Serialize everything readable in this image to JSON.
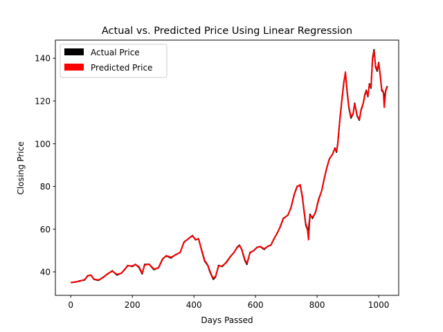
{
  "chart_data": {
    "type": "line",
    "title": "Actual vs. Predicted Price Using Linear Regression",
    "xlabel": "Days Passed",
    "ylabel": "Closing Price",
    "xlim": [
      -50,
      1065
    ],
    "ylim": [
      29,
      148.5
    ],
    "xticks": [
      0,
      200,
      400,
      600,
      800,
      1000
    ],
    "yticks": [
      40,
      60,
      80,
      100,
      120,
      140
    ],
    "grid": false,
    "legend_position": "top-left",
    "series": [
      {
        "name": "Actual Price",
        "color": "#000000",
        "points": [
          [
            0,
            35
          ],
          [
            15,
            35.2
          ],
          [
            30,
            35.8
          ],
          [
            45,
            36.2
          ],
          [
            55,
            38.2
          ],
          [
            65,
            38.5
          ],
          [
            75,
            36.5
          ],
          [
            90,
            36
          ],
          [
            105,
            37.5
          ],
          [
            120,
            39
          ],
          [
            135,
            40.5
          ],
          [
            150,
            38.5
          ],
          [
            165,
            39.5
          ],
          [
            175,
            41
          ],
          [
            185,
            43
          ],
          [
            200,
            42.5
          ],
          [
            210,
            43.5
          ],
          [
            222,
            42
          ],
          [
            232,
            39
          ],
          [
            240,
            43.5
          ],
          [
            255,
            43.5
          ],
          [
            270,
            41
          ],
          [
            285,
            42
          ],
          [
            298,
            46
          ],
          [
            310,
            47.5
          ],
          [
            325,
            46.5
          ],
          [
            340,
            48
          ],
          [
            355,
            49
          ],
          [
            368,
            54
          ],
          [
            382,
            55.5
          ],
          [
            395,
            57
          ],
          [
            405,
            55
          ],
          [
            415,
            55.5
          ],
          [
            425,
            50
          ],
          [
            435,
            45
          ],
          [
            445,
            43
          ],
          [
            452,
            40
          ],
          [
            458,
            38
          ],
          [
            463,
            36.5
          ],
          [
            470,
            37.5
          ],
          [
            480,
            43
          ],
          [
            492,
            42.5
          ],
          [
            505,
            44.5
          ],
          [
            520,
            47.5
          ],
          [
            530,
            49
          ],
          [
            540,
            51.5
          ],
          [
            548,
            52.5
          ],
          [
            555,
            50.5
          ],
          [
            565,
            45.5
          ],
          [
            572,
            43.5
          ],
          [
            582,
            49
          ],
          [
            595,
            50
          ],
          [
            605,
            51.5
          ],
          [
            615,
            51.8
          ],
          [
            628,
            50.5
          ],
          [
            640,
            52
          ],
          [
            650,
            52.5
          ],
          [
            660,
            55.5
          ],
          [
            670,
            58
          ],
          [
            680,
            61
          ],
          [
            690,
            65
          ],
          [
            705,
            66.5
          ],
          [
            715,
            70
          ],
          [
            725,
            76
          ],
          [
            735,
            80
          ],
          [
            745,
            80.5
          ],
          [
            752,
            75
          ],
          [
            758,
            68
          ],
          [
            763,
            62
          ],
          [
            768,
            60
          ],
          [
            772,
            59.5
          ],
          [
            777,
            67
          ],
          [
            785,
            65
          ],
          [
            795,
            68
          ],
          [
            805,
            74
          ],
          [
            815,
            78
          ],
          [
            822,
            83
          ],
          [
            830,
            88
          ],
          [
            840,
            93
          ],
          [
            850,
            95
          ],
          [
            858,
            98
          ],
          [
            863,
            96
          ],
          [
            867,
            100
          ],
          [
            873,
            110
          ],
          [
            880,
            120
          ],
          [
            887,
            129
          ],
          [
            892,
            133
          ],
          [
            897,
            125
          ],
          [
            903,
            117
          ],
          [
            910,
            112
          ],
          [
            917,
            114
          ],
          [
            922,
            119
          ],
          [
            930,
            113
          ],
          [
            937,
            111
          ],
          [
            943,
            116
          ],
          [
            950,
            119
          ],
          [
            955,
            123
          ],
          [
            960,
            125
          ],
          [
            965,
            122
          ],
          [
            970,
            128
          ],
          [
            975,
            126
          ],
          [
            980,
            140
          ],
          [
            985,
            144
          ],
          [
            990,
            136
          ],
          [
            995,
            134
          ],
          [
            1000,
            138
          ],
          [
            1005,
            132
          ],
          [
            1010,
            125
          ],
          [
            1015,
            124
          ],
          [
            1018,
            121
          ],
          [
            1023,
            125
          ],
          [
            1028,
            127
          ]
        ]
      },
      {
        "name": "Predicted Price",
        "color": "#ff0000",
        "points": [
          [
            0,
            35
          ],
          [
            15,
            35.3
          ],
          [
            30,
            35.6
          ],
          [
            45,
            36.4
          ],
          [
            55,
            38
          ],
          [
            65,
            38.6
          ],
          [
            75,
            36.6
          ],
          [
            90,
            36.2
          ],
          [
            105,
            37.3
          ],
          [
            120,
            39.2
          ],
          [
            135,
            40.3
          ],
          [
            150,
            38.8
          ],
          [
            165,
            39.4
          ],
          [
            175,
            41.2
          ],
          [
            185,
            42.8
          ],
          [
            200,
            42.8
          ],
          [
            210,
            43.4
          ],
          [
            222,
            42.3
          ],
          [
            232,
            39.4
          ],
          [
            240,
            43.2
          ],
          [
            255,
            43.6
          ],
          [
            270,
            41.3
          ],
          [
            285,
            41.8
          ],
          [
            298,
            45.8
          ],
          [
            310,
            47.6
          ],
          [
            325,
            46.8
          ],
          [
            340,
            47.9
          ],
          [
            355,
            49.1
          ],
          [
            368,
            53.8
          ],
          [
            382,
            55.6
          ],
          [
            395,
            56.8
          ],
          [
            405,
            55.2
          ],
          [
            415,
            55.3
          ],
          [
            425,
            50.3
          ],
          [
            435,
            45.4
          ],
          [
            445,
            43.2
          ],
          [
            452,
            40.4
          ],
          [
            458,
            38.3
          ],
          [
            463,
            37
          ],
          [
            470,
            37.8
          ],
          [
            480,
            42.7
          ],
          [
            492,
            42.8
          ],
          [
            505,
            44.3
          ],
          [
            520,
            47.4
          ],
          [
            530,
            49.1
          ],
          [
            540,
            51.3
          ],
          [
            548,
            52.3
          ],
          [
            555,
            50.8
          ],
          [
            565,
            45.9
          ],
          [
            572,
            44
          ],
          [
            582,
            48.8
          ],
          [
            595,
            50.1
          ],
          [
            605,
            51.4
          ],
          [
            615,
            51.9
          ],
          [
            628,
            50.8
          ],
          [
            640,
            51.9
          ],
          [
            650,
            52.6
          ],
          [
            660,
            55.3
          ],
          [
            670,
            58.1
          ],
          [
            680,
            60.8
          ],
          [
            690,
            64.8
          ],
          [
            705,
            66.6
          ],
          [
            715,
            69.8
          ],
          [
            725,
            75.7
          ],
          [
            735,
            79.8
          ],
          [
            745,
            80.8
          ],
          [
            752,
            75.5
          ],
          [
            758,
            68.5
          ],
          [
            763,
            62.6
          ],
          [
            768,
            60.5
          ],
          [
            772,
            55
          ],
          [
            777,
            66.5
          ],
          [
            785,
            65.5
          ],
          [
            795,
            67.8
          ],
          [
            805,
            73.6
          ],
          [
            815,
            78.1
          ],
          [
            822,
            82.7
          ],
          [
            830,
            87.8
          ],
          [
            840,
            92.8
          ],
          [
            850,
            95.2
          ],
          [
            858,
            97.8
          ],
          [
            863,
            96.5
          ],
          [
            867,
            99.6
          ],
          [
            873,
            109.5
          ],
          [
            880,
            119.5
          ],
          [
            887,
            128.5
          ],
          [
            892,
            133.6
          ],
          [
            897,
            125.4
          ],
          [
            903,
            117.5
          ],
          [
            910,
            112.6
          ],
          [
            917,
            114.2
          ],
          [
            922,
            118.6
          ],
          [
            930,
            113.4
          ],
          [
            937,
            111.3
          ],
          [
            943,
            115.6
          ],
          [
            950,
            118.8
          ],
          [
            955,
            122.6
          ],
          [
            960,
            124.6
          ],
          [
            965,
            122.4
          ],
          [
            970,
            127.5
          ],
          [
            975,
            126.4
          ],
          [
            980,
            139.5
          ],
          [
            985,
            143.4
          ],
          [
            990,
            136.6
          ],
          [
            995,
            134.5
          ],
          [
            1000,
            137.6
          ],
          [
            1005,
            132.5
          ],
          [
            1010,
            125.6
          ],
          [
            1015,
            124.3
          ],
          [
            1018,
            117
          ],
          [
            1023,
            124.6
          ],
          [
            1028,
            126.6
          ]
        ]
      }
    ]
  }
}
